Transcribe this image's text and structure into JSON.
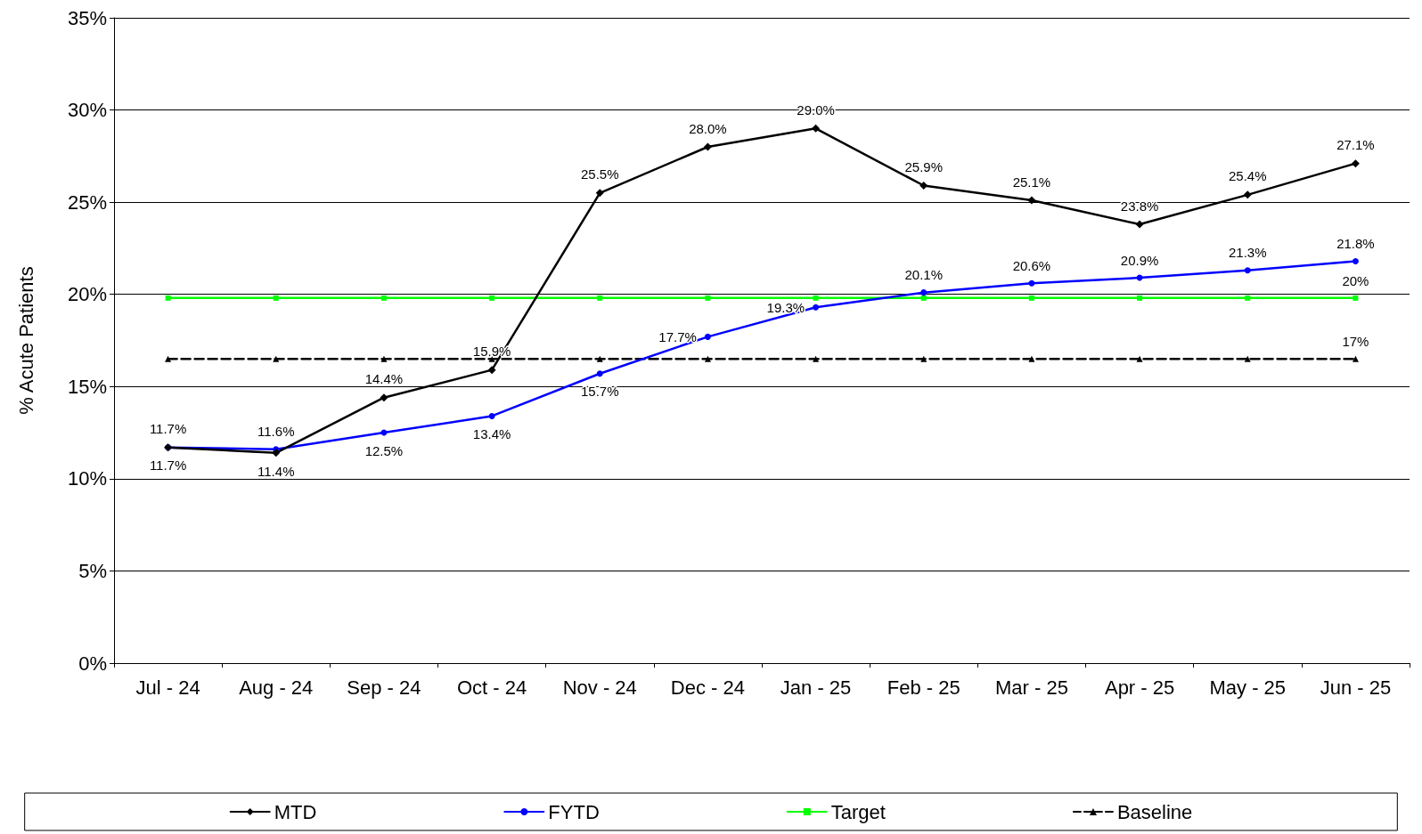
{
  "chart_data": {
    "type": "line",
    "ylabel": "% Acute Patients",
    "categories": [
      "Jul - 24",
      "Aug - 24",
      "Sep - 24",
      "Oct - 24",
      "Nov - 24",
      "Dec - 24",
      "Jan - 25",
      "Feb - 25",
      "Mar - 25",
      "Apr - 25",
      "May - 25",
      "Jun - 25"
    ],
    "series": [
      {
        "name": "MTD",
        "color": "#000000",
        "marker": "diamond",
        "line_style": "solid",
        "values": [
          11.7,
          11.4,
          14.4,
          15.9,
          25.5,
          28.0,
          29.0,
          25.9,
          25.1,
          23.8,
          25.4,
          27.1
        ],
        "value_labels": [
          "11.7%",
          "11.4%",
          "14.4%",
          "15.9%",
          "25.5%",
          "28.0%",
          "29.0%",
          "25.9%",
          "25.1%",
          "23.8%",
          "25.4%",
          "27.1%"
        ]
      },
      {
        "name": "FYTD",
        "color": "#0000ff",
        "marker": "circle",
        "line_style": "solid",
        "values": [
          11.7,
          11.6,
          12.5,
          13.4,
          15.7,
          17.7,
          19.3,
          20.1,
          20.6,
          20.9,
          21.3,
          21.8
        ],
        "value_labels": [
          "11.7%",
          "11.6%",
          "12.5%",
          "13.4%",
          "15.7%",
          "17.7%",
          "19.3%",
          "20.1%",
          "20.6%",
          "20.9%",
          "21.3%",
          "21.8%"
        ]
      },
      {
        "name": "Target",
        "color": "#00ff00",
        "marker": "square",
        "line_style": "solid",
        "values": [
          19.8,
          19.8,
          19.8,
          19.8,
          19.8,
          19.8,
          19.8,
          19.8,
          19.8,
          19.8,
          19.8,
          19.8
        ],
        "value_labels": [
          null,
          null,
          null,
          null,
          null,
          null,
          null,
          null,
          null,
          null,
          null,
          "20%"
        ]
      },
      {
        "name": "Baseline",
        "color": "#000000",
        "marker": "triangle",
        "line_style": "dashed",
        "values": [
          16.5,
          16.5,
          16.5,
          16.5,
          16.5,
          16.5,
          16.5,
          16.5,
          16.5,
          16.5,
          16.5,
          16.5
        ],
        "value_labels": [
          null,
          null,
          null,
          null,
          null,
          null,
          null,
          null,
          null,
          null,
          null,
          "17%"
        ]
      }
    ],
    "ylim": [
      0,
      35
    ],
    "yticks": [
      {
        "value": 0,
        "label": "0%"
      },
      {
        "value": 5,
        "label": "5%"
      },
      {
        "value": 10,
        "label": "10%"
      },
      {
        "value": 15,
        "label": "15%"
      },
      {
        "value": 20,
        "label": "20%"
      },
      {
        "value": 25,
        "label": "25%"
      },
      {
        "value": 30,
        "label": "30%"
      },
      {
        "value": 35,
        "label": "35%"
      }
    ],
    "grid": "y",
    "legend": "bottom"
  }
}
